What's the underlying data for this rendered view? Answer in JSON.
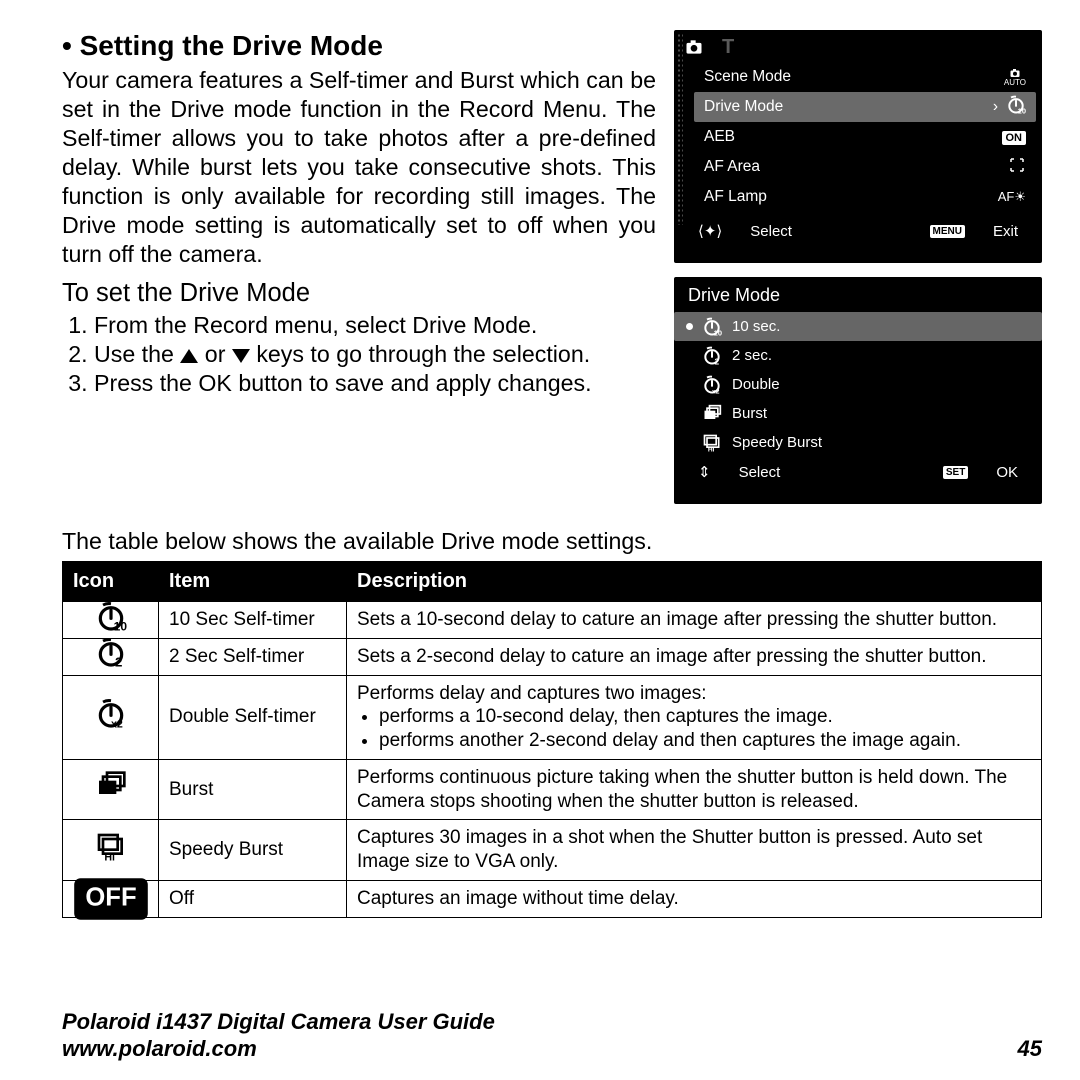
{
  "section": {
    "title": "• Setting the Drive Mode",
    "body": "Your camera features a Self-timer and Burst which can be set in the Drive mode function in the Record Menu. The Self-timer allows you to take photos after a pre-defined delay. While burst lets you take consecutive shots. This function is only available for recording still images. The Drive mode setting is automatically set to off when you turn off the camera.",
    "subhead": "To set the Drive Mode",
    "steps": [
      "From the Record menu, select Drive Mode.",
      "Use the ▲ or ▼ keys to go through the selection.",
      "Press the OK button to save and apply changes."
    ],
    "tablenote": "The table below shows the available Drive mode settings."
  },
  "lcd1": {
    "items": [
      {
        "label": "Scene Mode",
        "right": "auto-icon",
        "selected": false
      },
      {
        "label": "Drive Mode",
        "right": "timer10-icon",
        "selected": true
      },
      {
        "label": "AEB",
        "right": "on-badge",
        "selected": false
      },
      {
        "label": "AF Area",
        "right": "brackets-icon",
        "selected": false
      },
      {
        "label": "AF Lamp",
        "right": "aflamp-text",
        "selected": false
      }
    ],
    "foot_left": "Select",
    "foot_right": "Exit",
    "foot_right_badge": "MENU"
  },
  "lcd2": {
    "title": "Drive Mode",
    "items": [
      {
        "icon": "timer10",
        "label": "10 sec.",
        "selected": true
      },
      {
        "icon": "timer2",
        "label": "2 sec."
      },
      {
        "icon": "timerx2",
        "label": "Double"
      },
      {
        "icon": "burst",
        "label": "Burst"
      },
      {
        "icon": "speedy",
        "label": "Speedy Burst"
      }
    ],
    "foot_left": "Select",
    "foot_right": "OK",
    "foot_right_badge": "SET"
  },
  "table": {
    "headers": [
      "Icon",
      "Item",
      "Description"
    ],
    "rows": [
      {
        "icon": "timer10",
        "item": "10 Sec Self-timer",
        "desc": "Sets a 10-second delay to cature an image after pressing the shutter button."
      },
      {
        "icon": "timer2",
        "item": "2 Sec Self-timer",
        "desc": "Sets a 2-second delay to cature an image after pressing the shutter button."
      },
      {
        "icon": "timerx2",
        "item": "Double Self-timer",
        "desc_intro": "Performs delay and captures two images:",
        "bullets": [
          "performs a 10-second delay, then captures the image.",
          "performs another 2-second delay and then captures the image again."
        ]
      },
      {
        "icon": "burst",
        "item": "Burst",
        "desc": "Performs continuous picture taking when the shutter button is held down. The Camera stops shooting when the shutter button is released."
      },
      {
        "icon": "speedy",
        "item": "Speedy Burst",
        "desc": "Captures 30 images in a shot when the Shutter button is pressed. Auto set Image size to VGA only."
      },
      {
        "icon": "off",
        "item": "Off",
        "desc": "Captures an image without time delay."
      }
    ]
  },
  "footer": {
    "guide": "Polaroid i1437 Digital Camera User Guide",
    "url": "www.polaroid.com",
    "page": "45"
  },
  "colors": {
    "black": "#000000",
    "white": "#ffffff",
    "lcd_sel": "#6a6a6a",
    "lcd_dim": "#5a5a5a"
  }
}
